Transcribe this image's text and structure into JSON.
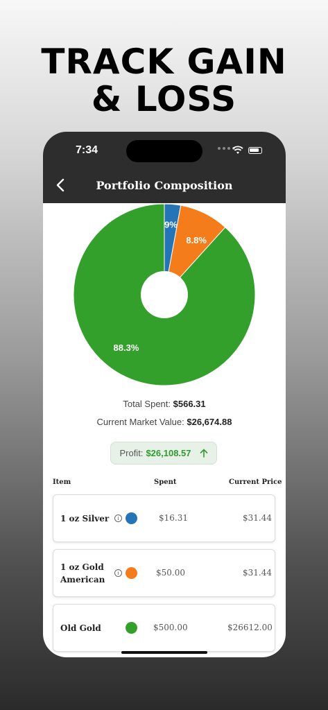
{
  "headline": {
    "line1": "TRACK GAIN",
    "line2": "& LOSS"
  },
  "status_bar": {
    "time": "7:34"
  },
  "nav": {
    "title": "Portfolio Composition"
  },
  "chart_data": {
    "type": "pie",
    "donut": true,
    "slices": [
      {
        "label": "2.9%",
        "value": 2.9,
        "color": "#2574b6"
      },
      {
        "label": "8.8%",
        "value": 8.8,
        "color": "#f47c1a"
      },
      {
        "label": "88.3%",
        "value": 88.3,
        "color": "#33a02c"
      }
    ]
  },
  "summary": {
    "total_spent_label": "Total Spent:",
    "total_spent_value": "$566.31",
    "market_value_label": "Current Market Value:",
    "market_value_value": "$26,674.88"
  },
  "profit": {
    "label": "Profit:",
    "value": "$26,108.57"
  },
  "table": {
    "headers": {
      "item": "Item",
      "spent": "Spent",
      "price": "Current Price"
    },
    "rows": [
      {
        "name": "1 oz Silver",
        "color": "#2574b6",
        "info": true,
        "spent": "$16.31",
        "price": "$31.44"
      },
      {
        "name_line1": "1 oz Gold",
        "name_line2": "American",
        "color": "#f47c1a",
        "info": true,
        "spent": "$50.00",
        "price": "$31.44"
      },
      {
        "name": "Old Gold",
        "color": "#33a02c",
        "info": false,
        "spent": "$500.00",
        "price": "$26612.00"
      }
    ],
    "info_glyph": "i"
  }
}
